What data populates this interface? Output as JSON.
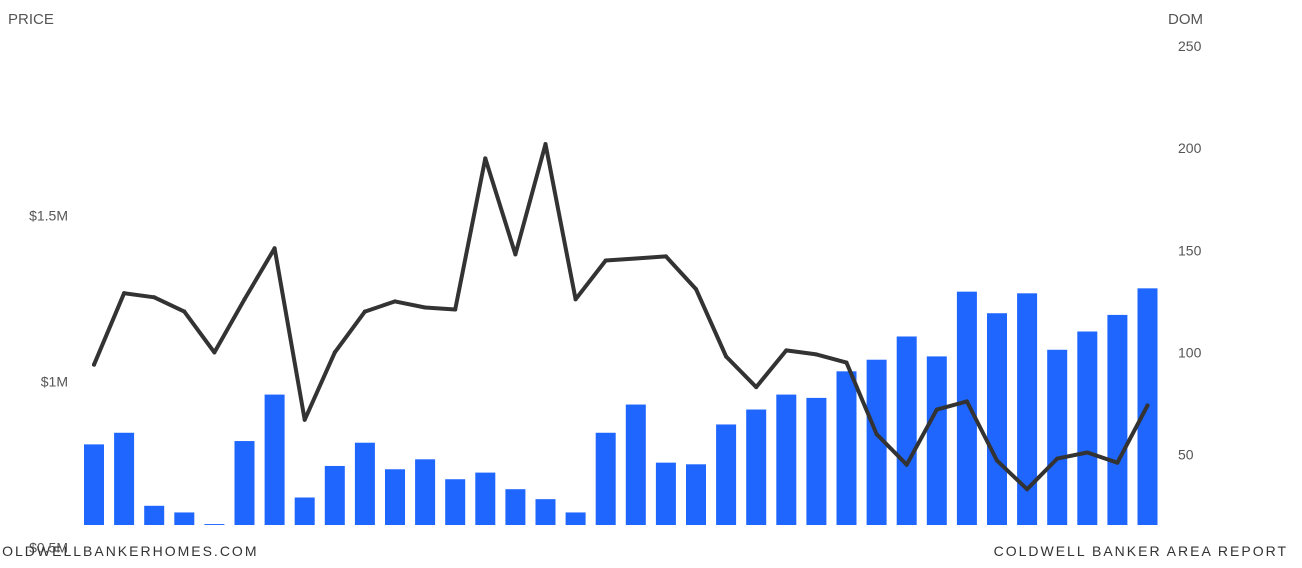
{
  "chart_data": {
    "type": "bar",
    "left_axis": {
      "title": "PRICE",
      "ticks": [
        {
          "value": 1500000,
          "label": "$1.5M"
        },
        {
          "value": 1000000,
          "label": "$1M"
        },
        {
          "value": 500000,
          "label": "$0.5M"
        }
      ],
      "ylim": [
        0,
        1500000
      ]
    },
    "right_axis": {
      "title": "DOM",
      "ticks": [
        {
          "value": 250,
          "label": "250"
        },
        {
          "value": 200,
          "label": "200"
        },
        {
          "value": 150,
          "label": "150"
        },
        {
          "value": 100,
          "label": "100"
        },
        {
          "value": 50,
          "label": "50"
        }
      ],
      "ylim": [
        0,
        250
      ]
    },
    "grid": false,
    "legend": "none",
    "series": [
      {
        "type": "bar",
        "axis": "left",
        "color": "#1f66ff",
        "values": [
          810000,
          845000,
          625000,
          605000,
          570000,
          820000,
          960000,
          650000,
          745000,
          815000,
          735000,
          765000,
          705000,
          725000,
          675000,
          645000,
          605000,
          845000,
          930000,
          755000,
          750000,
          870000,
          915000,
          960000,
          950000,
          1030000,
          1065000,
          1135000,
          1075000,
          1270000,
          1205000,
          1265000,
          1095000,
          1150000,
          1200000,
          1280000
        ]
      },
      {
        "type": "line",
        "axis": "right",
        "color": "#333333",
        "values": [
          94,
          129,
          127,
          120,
          100,
          126,
          151,
          67,
          100,
          120,
          125,
          122,
          121,
          195,
          148,
          202,
          126,
          145,
          146,
          147,
          131,
          98,
          83,
          101,
          99,
          95,
          60,
          45,
          72,
          76,
          47,
          33,
          48,
          51,
          46,
          74
        ]
      }
    ]
  },
  "footer": {
    "left": "COLDWELLBANKERHOMES.COM",
    "right": "COLDWELL BANKER AREA REPORT"
  }
}
